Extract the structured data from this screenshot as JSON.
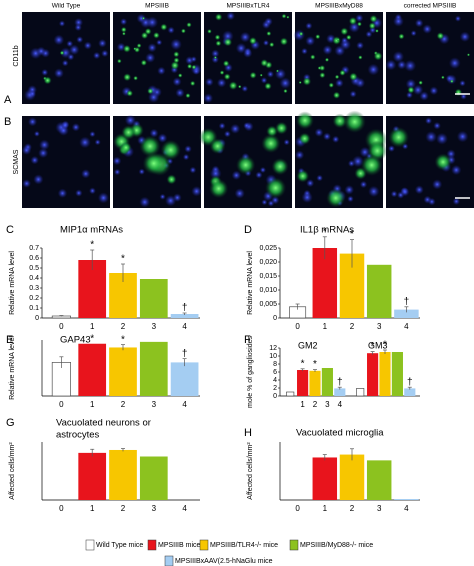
{
  "figure": {
    "panels": [
      "A",
      "B"
    ],
    "columns": [
      "Wild Type",
      "MPSIIIB",
      "MPSIIIBxTLR4",
      "MPSIIIBxMyD88",
      "corrected MPSIIIB"
    ],
    "rows": [
      "CD11b",
      "SCMAS"
    ]
  },
  "legend": {
    "items": [
      {
        "name": "Wild Type mice",
        "color": "#ffffff"
      },
      {
        "name": "MPSIIIB mice",
        "color": "#e8141c"
      },
      {
        "name": "MPSIIIB/TLR4-/- mice",
        "color": "#f7c600"
      },
      {
        "name": "MPSIIIB/MyD88-/- mice",
        "color": "#8cc21f"
      },
      {
        "name": "MPSIIIBxAAV(2.5-hNaGlu mice",
        "color": "#a4cdf2"
      }
    ]
  },
  "chart_data": [
    {
      "type": "bar",
      "panel": "C",
      "title": [
        "MIP1α mRNAs"
      ],
      "ylabel": "Relative mRNA level",
      "categories": [
        "0",
        "1",
        "2",
        "3",
        "4"
      ],
      "values": [
        0.02,
        0.58,
        0.45,
        0.39,
        0.04
      ],
      "errors": [
        0.005,
        0.1,
        0.09,
        null,
        0.01
      ],
      "markers": [
        null,
        "*",
        "*",
        null,
        "†"
      ],
      "ylim": [
        0,
        0.7
      ],
      "yticks": [
        0,
        0.1,
        0.2,
        0.3,
        0.4,
        0.5,
        0.6,
        0.7
      ]
    },
    {
      "type": "bar",
      "panel": "D",
      "title": [
        "IL1β mRNAs"
      ],
      "ylabel": "Relative mRNA level",
      "categories": [
        "0",
        "1",
        "2",
        "3",
        "4"
      ],
      "values": [
        0.004,
        0.025,
        0.023,
        0.019,
        0.003
      ],
      "errors": [
        0.001,
        0.004,
        0.005,
        null,
        0.001
      ],
      "markers": [
        null,
        "*",
        "*",
        null,
        "†"
      ],
      "ylim": [
        0,
        0.025
      ],
      "yticks": [
        0,
        {
          "value": 0.005,
          "label": "0,005"
        },
        {
          "value": 0.01,
          "label": "0,010"
        },
        {
          "value": 0.015,
          "label": "0,015"
        },
        {
          "value": 0.02,
          "label": "0,020"
        },
        {
          "value": 0.025,
          "label": "0,025"
        }
      ]
    },
    {
      "type": "bar",
      "panel": "E",
      "title": [
        "GAP43"
      ],
      "ylabel": "Relative mRNA level",
      "categories": [
        "0",
        "1",
        "2",
        "3",
        "4"
      ],
      "values": [
        0.18,
        0.28,
        0.26,
        0.29,
        0.18
      ],
      "errors": [
        0.03,
        null,
        0.015,
        null,
        0.02
      ],
      "markers": [
        null,
        "*",
        "*",
        null,
        "†"
      ],
      "ylim": [
        0,
        0.3
      ]
    },
    {
      "type": "grouped",
      "panel": "F",
      "ylabel": "mole % of gangliosides",
      "categories": [
        null,
        "1",
        "2",
        "3",
        "4"
      ],
      "groups": [
        {
          "name": "GM2",
          "values": [
            1,
            6.5,
            6.3,
            7,
            1.9
          ],
          "errors": [
            null,
            0.3,
            0.3,
            null,
            0.3
          ],
          "markers": [
            null,
            "*",
            "*",
            null,
            "†"
          ]
        },
        {
          "name": "GM3",
          "values": [
            1.9,
            10.7,
            11,
            11,
            1.9
          ],
          "errors": [
            null,
            0.4,
            0.5,
            null,
            0.3
          ],
          "markers": [
            null,
            "*",
            "*",
            null,
            "†"
          ]
        }
      ],
      "ylim": [
        0,
        12
      ],
      "yticks": [
        0,
        2,
        4,
        6,
        8,
        10,
        12
      ]
    },
    {
      "type": "bar",
      "panel": "G",
      "title": [
        "Vacuolated neurons or",
        "astrocytes"
      ],
      "ylabel": "Affected cells/mm²",
      "categories": [
        "0",
        "1",
        "2",
        "3",
        "4"
      ],
      "values": [
        0,
        65,
        69,
        60,
        0
      ],
      "errors": [
        null,
        5,
        2,
        null,
        null
      ],
      "ylim": [
        0,
        80
      ]
    },
    {
      "type": "bar",
      "panel": "H",
      "title": [
        "Vacuolated microglia"
      ],
      "ylabel": "Affected cells/mm²",
      "categories": [
        "0",
        "1",
        "2",
        "3",
        "4"
      ],
      "values": [
        0,
        44,
        47,
        41,
        1
      ],
      "errors": [
        null,
        3,
        6,
        null,
        null
      ],
      "ylim": [
        0,
        60
      ]
    }
  ]
}
